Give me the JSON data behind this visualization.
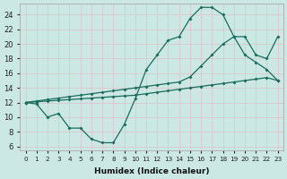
{
  "xlabel": "Humidex (Indice chaleur)",
  "bg_color": "#cce8e4",
  "grid_color": "#c8dedd",
  "line_color": "#1a6b5e",
  "xlim": [
    -0.5,
    23.5
  ],
  "ylim": [
    5.5,
    25.5
  ],
  "xticks": [
    0,
    1,
    2,
    3,
    4,
    5,
    6,
    7,
    8,
    9,
    10,
    11,
    12,
    13,
    14,
    15,
    16,
    17,
    18,
    19,
    20,
    21,
    22,
    23
  ],
  "yticks": [
    6,
    8,
    10,
    12,
    14,
    16,
    18,
    20,
    22,
    24
  ],
  "line_curvy_x": [
    0,
    1,
    2,
    3,
    4,
    5,
    6,
    7,
    8,
    9,
    10,
    11,
    12,
    13,
    14,
    15,
    16,
    17,
    18,
    19,
    20,
    21,
    22,
    23
  ],
  "line_curvy_y": [
    12.0,
    11.8,
    10.0,
    10.5,
    8.5,
    8.5,
    7.0,
    6.5,
    6.5,
    9.0,
    12.5,
    16.5,
    18.5,
    20.5,
    21.0,
    23.5,
    25.0,
    25.0,
    24.0,
    21.0,
    18.5,
    17.5,
    16.5,
    15.0
  ],
  "line_upper_x": [
    0,
    1,
    2,
    3,
    4,
    5,
    6,
    7,
    8,
    9,
    10,
    11,
    12,
    13,
    14,
    15,
    16,
    17,
    18,
    19,
    20,
    21,
    22,
    23
  ],
  "line_upper_y": [
    12.0,
    12.2,
    12.4,
    12.6,
    12.8,
    13.0,
    13.2,
    13.4,
    13.6,
    13.8,
    14.0,
    14.2,
    14.4,
    14.6,
    14.8,
    15.5,
    17.0,
    18.5,
    20.0,
    21.0,
    21.0,
    18.5,
    18.0,
    21.0
  ],
  "line_lower_x": [
    0,
    1,
    2,
    3,
    4,
    5,
    6,
    7,
    8,
    9,
    10,
    11,
    12,
    13,
    14,
    15,
    16,
    17,
    18,
    19,
    20,
    21,
    22,
    23
  ],
  "line_lower_y": [
    12.0,
    12.1,
    12.2,
    12.3,
    12.4,
    12.5,
    12.6,
    12.7,
    12.8,
    12.9,
    13.0,
    13.2,
    13.4,
    13.6,
    13.8,
    14.0,
    14.2,
    14.4,
    14.6,
    14.8,
    15.0,
    15.2,
    15.4,
    15.0
  ]
}
